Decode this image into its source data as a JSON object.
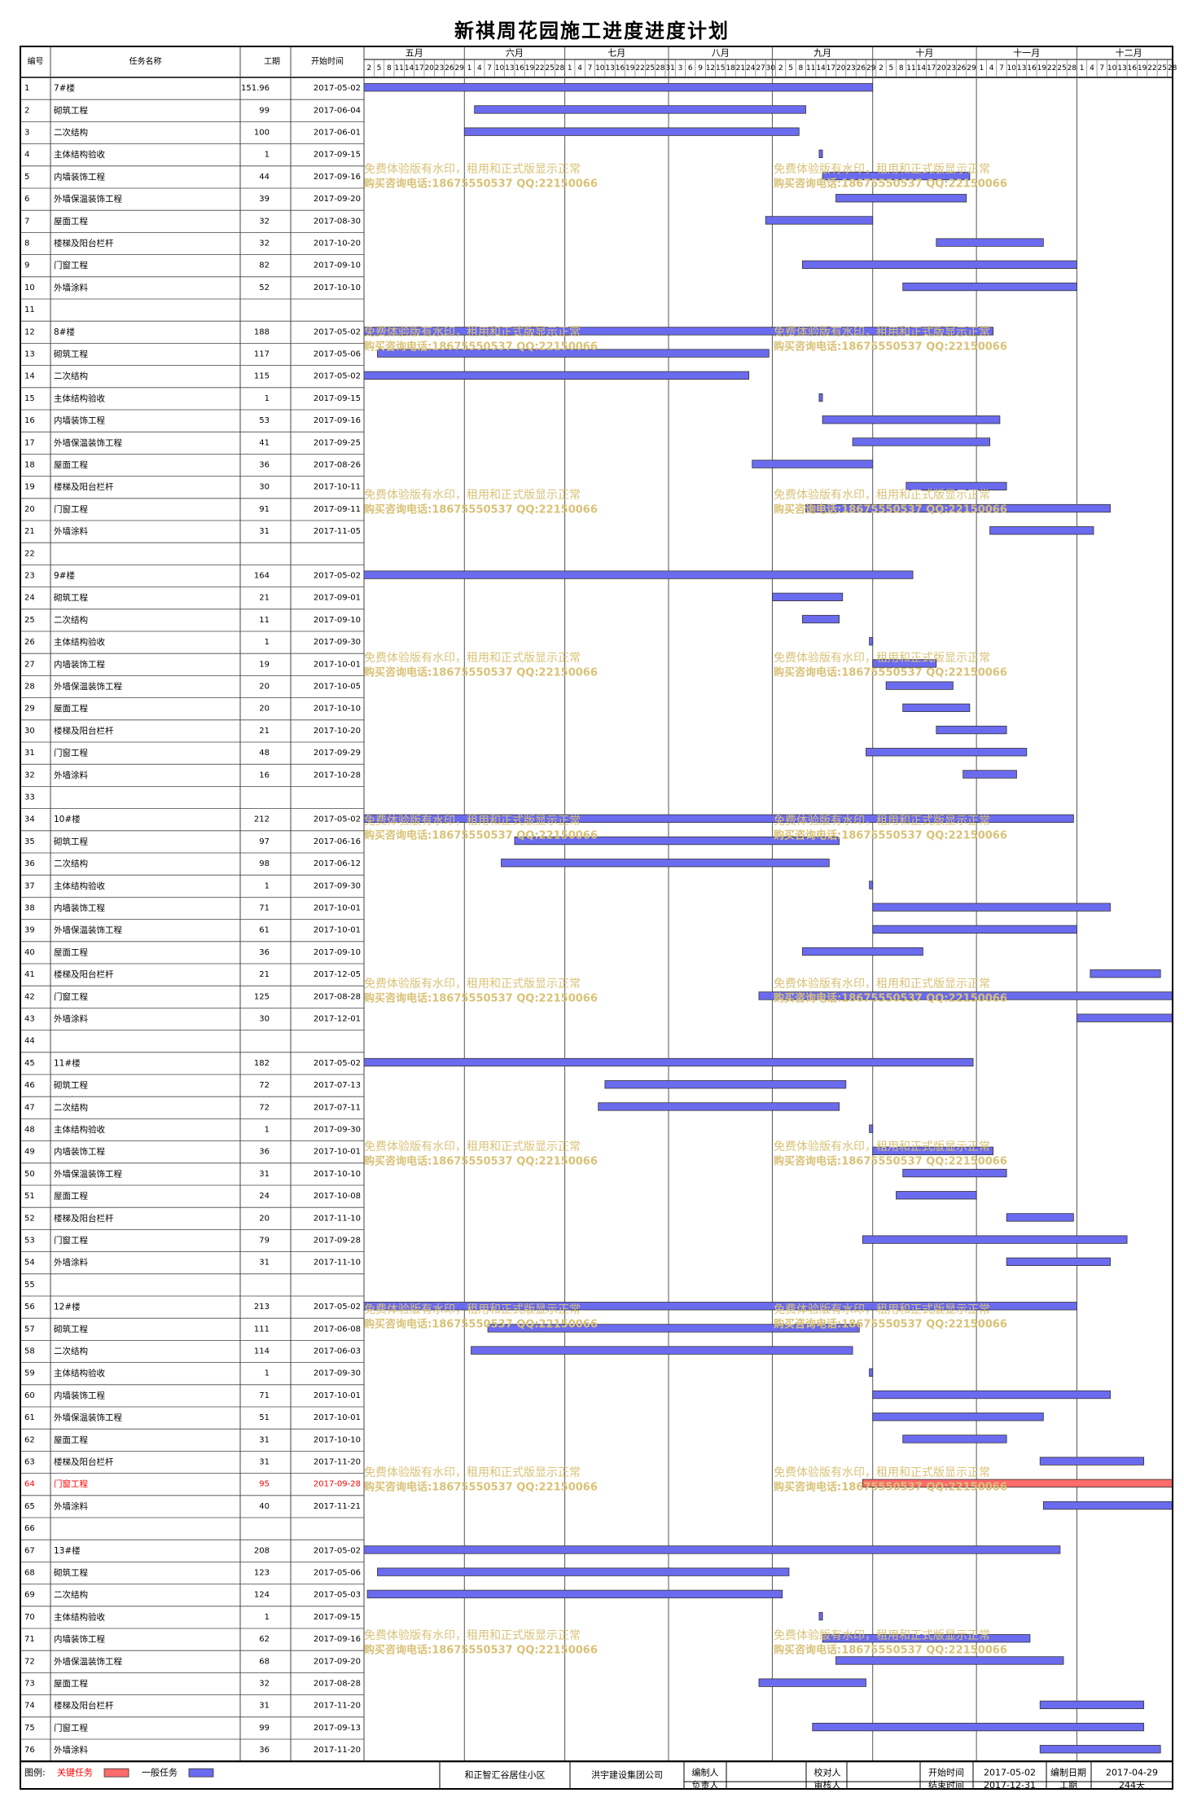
{
  "title": "新祺周花园施工进度进度计划",
  "headers": {
    "id": "编号",
    "name": "任务名称",
    "duration": "工期",
    "start": "开始时间"
  },
  "months": [
    "五月",
    "六月",
    "七月",
    "八月",
    "九月",
    "十月",
    "十一月",
    "十二月"
  ],
  "day_ticks": [
    2,
    5,
    8,
    11,
    14,
    17,
    20,
    23,
    26,
    29,
    1,
    4,
    7,
    10,
    13,
    16,
    19,
    22,
    25,
    28,
    1,
    4,
    7,
    10,
    13,
    16,
    19,
    22,
    25,
    28,
    31,
    3,
    6,
    9,
    12,
    15,
    18,
    21,
    24,
    27,
    30,
    2,
    5,
    8,
    11,
    14,
    17,
    20,
    23,
    26,
    29,
    2,
    5,
    8,
    11,
    14,
    17,
    20,
    23,
    26,
    29,
    1,
    4,
    7,
    10,
    13,
    16,
    19,
    22,
    25,
    28,
    1,
    4,
    7,
    10,
    13,
    16,
    19,
    22,
    25,
    28
  ],
  "watermark": {
    "line1": "免费体验版有水印，租用和正式版显示正常",
    "line2": "购买咨询电话:18675550537 QQ:22150066"
  },
  "colors": {
    "critical": "#ff6b6b",
    "normal": "#6b6bf0",
    "highlight_text": "#ff0000",
    "watermark": "#d9c277"
  },
  "chart_data": {
    "type": "gantt",
    "x_range": [
      "2017-05-02",
      "2017-12-31"
    ],
    "highlight_row": 64,
    "columns": [
      "id",
      "name",
      "duration",
      "start"
    ],
    "tasks": [
      [
        1,
        "7#楼",
        "151.96",
        "2017-05-02"
      ],
      [
        2,
        "砌筑工程",
        "99",
        "2017-06-04"
      ],
      [
        3,
        "二次结构",
        "100",
        "2017-06-01"
      ],
      [
        4,
        "主体结构验收",
        "1",
        "2017-09-15"
      ],
      [
        5,
        "内墙装饰工程",
        "44",
        "2017-09-16"
      ],
      [
        6,
        "外墙保温装饰工程",
        "39",
        "2017-09-20"
      ],
      [
        7,
        "屋面工程",
        "32",
        "2017-08-30"
      ],
      [
        8,
        "楼梯及阳台栏杆",
        "32",
        "2017-10-20"
      ],
      [
        9,
        "门窗工程",
        "82",
        "2017-09-10"
      ],
      [
        10,
        "外墙涂料",
        "52",
        "2017-10-10"
      ],
      [
        11,
        "",
        "",
        ""
      ],
      [
        12,
        "8#楼",
        "188",
        "2017-05-02"
      ],
      [
        13,
        "砌筑工程",
        "117",
        "2017-05-06"
      ],
      [
        14,
        "二次结构",
        "115",
        "2017-05-02"
      ],
      [
        15,
        "主体结构验收",
        "1",
        "2017-09-15"
      ],
      [
        16,
        "内墙装饰工程",
        "53",
        "2017-09-16"
      ],
      [
        17,
        "外墙保温装饰工程",
        "41",
        "2017-09-25"
      ],
      [
        18,
        "屋面工程",
        "36",
        "2017-08-26"
      ],
      [
        19,
        "楼梯及阳台栏杆",
        "30",
        "2017-10-11"
      ],
      [
        20,
        "门窗工程",
        "91",
        "2017-09-11"
      ],
      [
        21,
        "外墙涂料",
        "31",
        "2017-11-05"
      ],
      [
        22,
        "",
        "",
        ""
      ],
      [
        23,
        "9#楼",
        "164",
        "2017-05-02"
      ],
      [
        24,
        "砌筑工程",
        "21",
        "2017-09-01"
      ],
      [
        25,
        "二次结构",
        "11",
        "2017-09-10"
      ],
      [
        26,
        "主体结构验收",
        "1",
        "2017-09-30"
      ],
      [
        27,
        "内墙装饰工程",
        "19",
        "2017-10-01"
      ],
      [
        28,
        "外墙保温装饰工程",
        "20",
        "2017-10-05"
      ],
      [
        29,
        "屋面工程",
        "20",
        "2017-10-10"
      ],
      [
        30,
        "楼梯及阳台栏杆",
        "21",
        "2017-10-20"
      ],
      [
        31,
        "门窗工程",
        "48",
        "2017-09-29"
      ],
      [
        32,
        "外墙涂料",
        "16",
        "2017-10-28"
      ],
      [
        33,
        "",
        "",
        ""
      ],
      [
        34,
        "10#楼",
        "212",
        "2017-05-02"
      ],
      [
        35,
        "砌筑工程",
        "97",
        "2017-06-16"
      ],
      [
        36,
        "二次结构",
        "98",
        "2017-06-12"
      ],
      [
        37,
        "主体结构验收",
        "1",
        "2017-09-30"
      ],
      [
        38,
        "内墙装饰工程",
        "71",
        "2017-10-01"
      ],
      [
        39,
        "外墙保温装饰工程",
        "61",
        "2017-10-01"
      ],
      [
        40,
        "屋面工程",
        "36",
        "2017-09-10"
      ],
      [
        41,
        "楼梯及阳台栏杆",
        "21",
        "2017-12-05"
      ],
      [
        42,
        "门窗工程",
        "125",
        "2017-08-28"
      ],
      [
        43,
        "外墙涂料",
        "30",
        "2017-12-01"
      ],
      [
        44,
        "",
        "",
        ""
      ],
      [
        45,
        "11#楼",
        "182",
        "2017-05-02"
      ],
      [
        46,
        "砌筑工程",
        "72",
        "2017-07-13"
      ],
      [
        47,
        "二次结构",
        "72",
        "2017-07-11"
      ],
      [
        48,
        "主体结构验收",
        "1",
        "2017-09-30"
      ],
      [
        49,
        "内墙装饰工程",
        "36",
        "2017-10-01"
      ],
      [
        50,
        "外墙保温装饰工程",
        "31",
        "2017-10-10"
      ],
      [
        51,
        "屋面工程",
        "24",
        "2017-10-08"
      ],
      [
        52,
        "楼梯及阳台栏杆",
        "20",
        "2017-11-10"
      ],
      [
        53,
        "门窗工程",
        "79",
        "2017-09-28"
      ],
      [
        54,
        "外墙涂料",
        "31",
        "2017-11-10"
      ],
      [
        55,
        "",
        "",
        ""
      ],
      [
        56,
        "12#楼",
        "213",
        "2017-05-02"
      ],
      [
        57,
        "砌筑工程",
        "111",
        "2017-06-08"
      ],
      [
        58,
        "二次结构",
        "114",
        "2017-06-03"
      ],
      [
        59,
        "主体结构验收",
        "1",
        "2017-09-30"
      ],
      [
        60,
        "内墙装饰工程",
        "71",
        "2017-10-01"
      ],
      [
        61,
        "外墙保温装饰工程",
        "51",
        "2017-10-01"
      ],
      [
        62,
        "屋面工程",
        "31",
        "2017-10-10"
      ],
      [
        63,
        "楼梯及阳台栏杆",
        "31",
        "2017-11-20"
      ],
      [
        64,
        "门窗工程",
        "95",
        "2017-09-28"
      ],
      [
        65,
        "外墙涂料",
        "40",
        "2017-11-21"
      ],
      [
        66,
        "",
        "",
        ""
      ],
      [
        67,
        "13#楼",
        "208",
        "2017-05-02"
      ],
      [
        68,
        "砌筑工程",
        "123",
        "2017-05-06"
      ],
      [
        69,
        "二次结构",
        "124",
        "2017-05-03"
      ],
      [
        70,
        "主体结构验收",
        "1",
        "2017-09-15"
      ],
      [
        71,
        "内墙装饰工程",
        "62",
        "2017-09-16"
      ],
      [
        72,
        "外墙保温装饰工程",
        "68",
        "2017-09-20"
      ],
      [
        73,
        "屋面工程",
        "32",
        "2017-08-28"
      ],
      [
        74,
        "楼梯及阳台栏杆",
        "31",
        "2017-11-20"
      ],
      [
        75,
        "门窗工程",
        "99",
        "2017-09-13"
      ],
      [
        76,
        "外墙涂料",
        "36",
        "2017-11-20"
      ]
    ]
  },
  "footer": {
    "legend_label": "图例:",
    "critical_label": "关键任务",
    "normal_label": "一般任务",
    "project": "和正智汇谷居住小区",
    "company": "洪宇建设集团公司",
    "compiler_label": "编制人",
    "owner_label": "负责人",
    "checker_label": "校对人",
    "reviewer_label": "审核人",
    "start_label": "开始时间",
    "start_value": "2017-05-02",
    "end_label": "结束时间",
    "end_value": "2017-12-31",
    "date_label": "编制日期",
    "date_value": "2017-04-29",
    "duration_label": "工期",
    "duration_value": "244天"
  }
}
